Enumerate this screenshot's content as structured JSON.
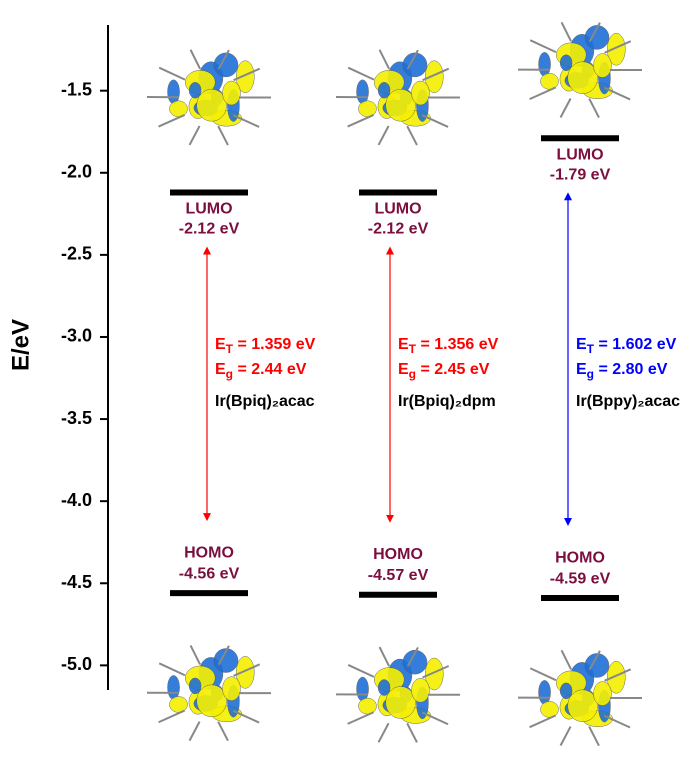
{
  "chart_data": {
    "type": "energy-levels",
    "ylabel": "E/eV",
    "ylim": [
      -5.15,
      -1.1
    ],
    "yticks": [
      -1.5,
      {
        "value": -2,
        "label": "-2.0"
      },
      -2.5,
      {
        "value": -3,
        "label": "-3.0"
      },
      -3.5,
      {
        "value": -4,
        "label": "-4.0"
      },
      -4.5,
      {
        "value": -5,
        "label": "-5.0"
      }
    ],
    "lumo_text": "LUMO",
    "homo_text": "HOMO",
    "e_symbol": "E",
    "et_sub": "T",
    "eg_sub": "g",
    "level_color": "#000000",
    "label_color": "#7a0f3f",
    "series": [
      {
        "name": "Ir(Bpiq)₂acac",
        "color": "#ff0000",
        "lumo": -2.12,
        "lumo_label": "-2.12 eV",
        "homo": -4.56,
        "homo_label": "-4.56 eV",
        "et_label": " = 1.359 eV",
        "eg_label": " = 2.44 eV"
      },
      {
        "name": "Ir(Bpiq)₂dpm",
        "color": "#ff0000",
        "lumo": -2.12,
        "lumo_label": "-2.12 eV",
        "homo": -4.57,
        "homo_label": "-4.57 eV",
        "et_label": " = 1.356 eV",
        "eg_label": " = 2.45 eV"
      },
      {
        "name": "Ir(Bppy)₂acac",
        "color": "#0000ff",
        "lumo": -1.79,
        "lumo_label": "-1.79 eV",
        "homo": -4.59,
        "homo_label": "-4.59 eV",
        "et_label": " = 1.602 eV",
        "eg_label": " = 2.80 eV"
      }
    ]
  }
}
